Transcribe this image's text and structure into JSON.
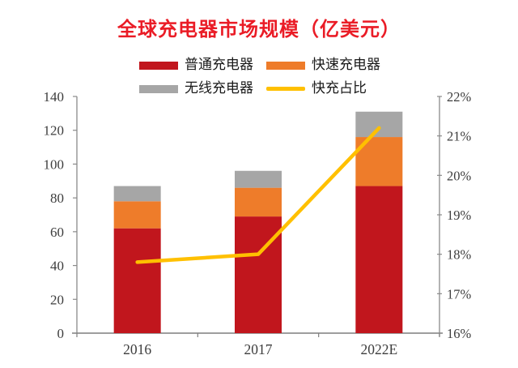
{
  "title": "全球充电器市场规模（亿美元）",
  "colors": {
    "normal": "#c1161d",
    "fast": "#ee7c2a",
    "wireless": "#a6a6a6",
    "line": "#ffc000",
    "title": "#ea1c26",
    "legend_text": "#1a1a1a",
    "axis_text": "#3d3d3d",
    "axis_line": "#8a8a8a",
    "baseline": "#7f7f7f"
  },
  "legend": [
    {
      "label": "普通充电器",
      "type": "bar",
      "color_key": "normal"
    },
    {
      "label": "快速充电器",
      "type": "bar",
      "color_key": "fast"
    },
    {
      "label": "无线充电器",
      "type": "bar",
      "color_key": "wireless"
    },
    {
      "label": "快充占比",
      "type": "line",
      "color_key": "line"
    }
  ],
  "chart_data": {
    "type": "bar",
    "subtype": "stacked-bar-with-line",
    "title": "全球充电器市场规模（亿美元）",
    "categories": [
      "2016",
      "2017",
      "2022E"
    ],
    "series": [
      {
        "name": "普通充电器",
        "type": "bar",
        "axis": "left",
        "color_key": "normal",
        "values": [
          62,
          69,
          87
        ]
      },
      {
        "name": "快速充电器",
        "type": "bar",
        "axis": "left",
        "color_key": "fast",
        "values": [
          16,
          17,
          29
        ]
      },
      {
        "name": "无线充电器",
        "type": "bar",
        "axis": "left",
        "color_key": "wireless",
        "values": [
          9,
          10,
          15
        ]
      },
      {
        "name": "快充占比",
        "type": "line",
        "axis": "right",
        "color_key": "line",
        "values": [
          17.8,
          18.0,
          21.2
        ]
      }
    ],
    "stacked_totals": [
      87,
      96,
      131
    ],
    "left_axis": {
      "min": 0,
      "max": 140,
      "step": 20,
      "suffix": ""
    },
    "right_axis": {
      "min": 16,
      "max": 22,
      "step": 1,
      "suffix": "%"
    },
    "grid": false,
    "legend_position": "top"
  }
}
